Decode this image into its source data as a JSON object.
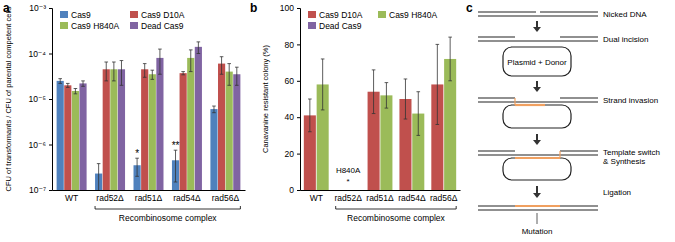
{
  "chart_data": [
    {
      "type": "bar",
      "panel": "a",
      "y_label": "CFU of transformants / CFU of parental competent cells",
      "log": "y",
      "grid": false,
      "legend": "top-left",
      "categories": [
        "WT",
        "rad52Δ",
        "rad51Δ",
        "rad54Δ",
        "rad56Δ"
      ],
      "group": {
        "label": "Recombinosome complex",
        "categories": [
          "rad52Δ",
          "rad51Δ",
          "rad54Δ",
          "rad56Δ"
        ]
      },
      "ylim": [
        1e-07,
        0.001
      ],
      "yticks": [
        {
          "value": 1e-07,
          "label": "10⁻⁷"
        },
        {
          "value": 1e-06,
          "label": "10⁻⁶"
        },
        {
          "value": 1e-05,
          "label": "10⁻⁵"
        },
        {
          "value": 0.0001,
          "label": "10⁻⁴"
        },
        {
          "value": 0.001,
          "label": "10⁻³"
        }
      ],
      "series": [
        {
          "name": "Cas9",
          "color": "#4F81BD",
          "values": [
            2.5e-05,
            2.3e-07,
            3.5e-07,
            4.5e-07,
            6e-06
          ],
          "errors": [
            3e-06,
            1.5e-07,
            1.5e-07,
            3e-07,
            1e-06
          ]
        },
        {
          "name": "Cas9 D10A",
          "color": "#C0504D",
          "values": [
            2e-05,
            4.5e-05,
            4.5e-05,
            3.7e-05,
            6e-05
          ],
          "errors": [
            2e-06,
            2e-05,
            1.5e-05,
            3e-06,
            2.5e-05
          ]
        },
        {
          "name": "Cas9 H840A",
          "color": "#9BBB59",
          "values": [
            1.5e-05,
            4.5e-05,
            3.5e-05,
            8e-05,
            4e-05
          ],
          "errors": [
            2e-06,
            2e-05,
            8e-06,
            4e-05,
            2e-05
          ]
        },
        {
          "name": "Dead Cas9",
          "color": "#8064A2",
          "values": [
            2.2e-05,
            4.5e-05,
            8e-05,
            0.00014,
            3.5e-05
          ],
          "errors": [
            3e-06,
            2.5e-05,
            4.5e-05,
            4e-05,
            1.5e-05
          ]
        }
      ],
      "annotations": [
        {
          "text": "*",
          "category": "rad51Δ",
          "series": "Cas9"
        },
        {
          "text": "**",
          "category": "rad54Δ",
          "series": "Cas9"
        }
      ]
    },
    {
      "type": "bar",
      "panel": "b",
      "y_label": "Canavanine resistant colony (%)",
      "grid": false,
      "legend": "top-left",
      "categories": [
        "WT",
        "rad52Δ",
        "rad51Δ",
        "rad54Δ",
        "rad56Δ"
      ],
      "group": {
        "label": "Recombinosome complex",
        "categories": [
          "rad52Δ",
          "rad51Δ",
          "rad54Δ",
          "rad56Δ"
        ]
      },
      "ylim": [
        0,
        100
      ],
      "yticks": [
        0,
        20,
        40,
        60,
        80,
        100
      ],
      "series": [
        {
          "name": "Cas9 D10A",
          "color": "#C0504D",
          "values": [
            41,
            null,
            54,
            50,
            58
          ],
          "errors": [
            9,
            null,
            12,
            11,
            22
          ]
        },
        {
          "name": "Cas9 H840A",
          "color": "#9BBB59",
          "values": [
            58,
            null,
            52,
            42,
            72
          ],
          "errors": [
            14,
            null,
            7,
            12,
            12
          ]
        },
        {
          "name": "Dead Cas9",
          "color": "#8064A2",
          "values": [
            null,
            null,
            null,
            null,
            null
          ],
          "errors": [
            null,
            null,
            null,
            null,
            null
          ]
        }
      ],
      "annotations": [
        {
          "text": "H840A",
          "category": "rad52Δ"
        },
        {
          "text": "*",
          "category": "rad52Δ"
        }
      ]
    }
  ],
  "diagram": {
    "panel": "c",
    "labels": [
      [
        "Nicked DNA"
      ],
      [
        "Dual incision"
      ],
      [
        "Plasmid + Donor"
      ],
      [
        "Strand invasion"
      ],
      [
        "Template switch",
        "& Synthesis"
      ],
      [
        "Ligation"
      ],
      [
        "Mutation"
      ]
    ]
  }
}
